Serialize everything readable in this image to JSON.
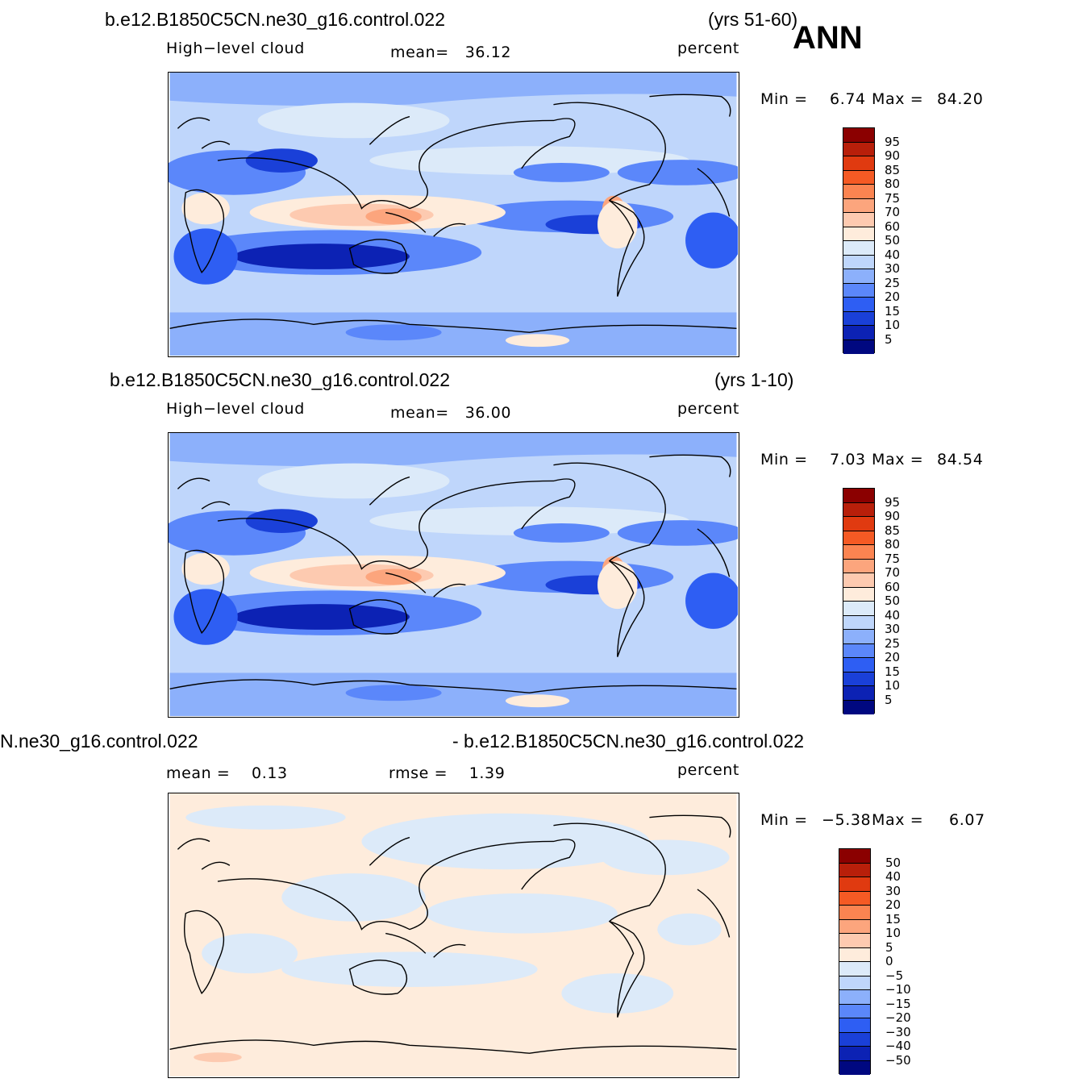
{
  "season": "ANN",
  "panels": [
    {
      "case": "b.e12.B1850C5CN.ne30_g16.control.022",
      "years": "(yrs 51-60)",
      "variable": "High−level cloud",
      "stat_text": "mean=   36.12",
      "units": "percent",
      "min_label": "Min =",
      "min_value": "6.74",
      "max_label": "Max =",
      "max_value": "84.20",
      "colorbar": {
        "labels": [
          "95",
          "90",
          "85",
          "80",
          "75",
          "70",
          "60",
          "50",
          "40",
          "30",
          "25",
          "20",
          "15",
          "10",
          "5"
        ],
        "colors": [
          "#8b0000",
          "#b81f0a",
          "#e03a10",
          "#f55a24",
          "#fb8451",
          "#fca57d",
          "#fdcab0",
          "#feecdc",
          "#dceaf9",
          "#bfd6fb",
          "#8cb0fb",
          "#5b87fa",
          "#2e5ef3",
          "#1a40d8",
          "#0c22b4",
          "#000880"
        ]
      }
    },
    {
      "case": "b.e12.B1850C5CN.ne30_g16.control.022",
      "years": "(yrs 1-10)",
      "variable": "High−level cloud",
      "stat_text": "mean=   36.00",
      "units": "percent",
      "min_label": "Min =",
      "min_value": "7.03",
      "max_label": "Max =",
      "max_value": "84.54",
      "colorbar": {
        "labels": [
          "95",
          "90",
          "85",
          "80",
          "75",
          "70",
          "60",
          "50",
          "40",
          "30",
          "25",
          "20",
          "15",
          "10",
          "5"
        ],
        "colors": [
          "#8b0000",
          "#b81f0a",
          "#e03a10",
          "#f55a24",
          "#fb8451",
          "#fca57d",
          "#fdcab0",
          "#feecdc",
          "#dceaf9",
          "#bfd6fb",
          "#8cb0fb",
          "#5b87fa",
          "#2e5ef3",
          "#1a40d8",
          "#0c22b4",
          "#000880"
        ]
      }
    },
    {
      "case_left": "N.ne30_g16.control.022",
      "case_right": "- b.e12.B1850C5CN.ne30_g16.control.022",
      "stat_text": "mean =    0.13",
      "rmse_text": "rmse =    1.39",
      "units": "percent",
      "min_label": "Min =",
      "min_value": "−5.38",
      "max_label": "Max =",
      "max_value": "6.07",
      "colorbar": {
        "labels": [
          "50",
          "40",
          "30",
          "20",
          "15",
          "10",
          "5",
          "0",
          "−5",
          "−10",
          "−15",
          "−20",
          "−30",
          "−40",
          "−50"
        ],
        "colors": [
          "#8b0000",
          "#b81f0a",
          "#e03a10",
          "#f55a24",
          "#fb8451",
          "#fca57d",
          "#fdcab0",
          "#feecdc",
          "#dceaf9",
          "#bfd6fb",
          "#8cb0fb",
          "#5b87fa",
          "#2e5ef3",
          "#1a40d8",
          "#0c22b4",
          "#000880"
        ]
      }
    }
  ]
}
